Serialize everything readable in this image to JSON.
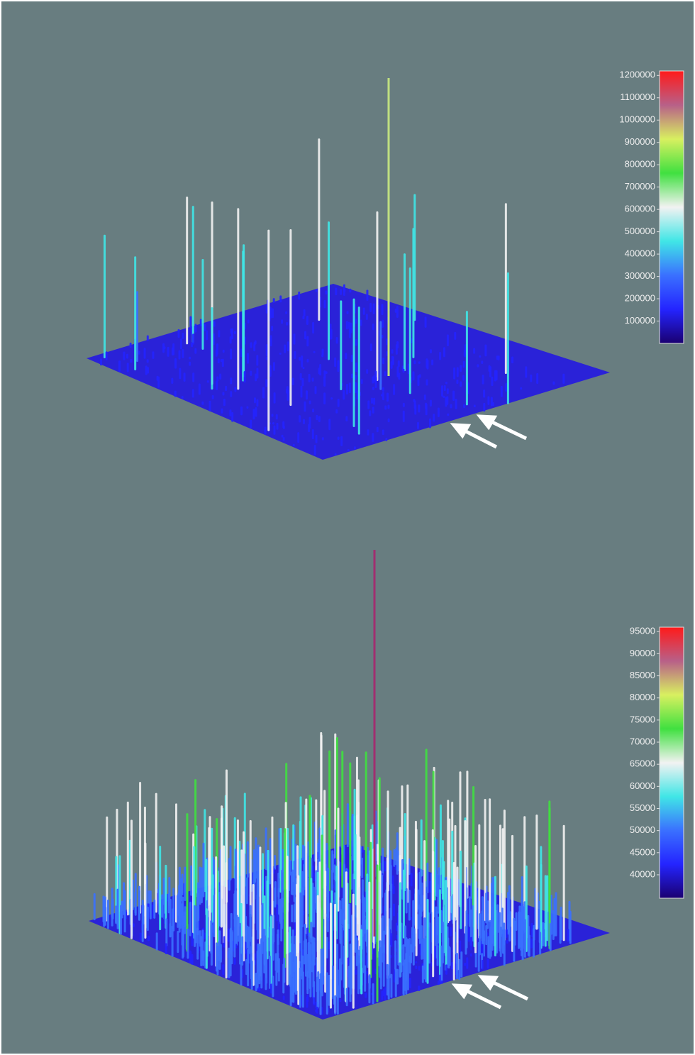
{
  "chart_data": [
    {
      "type": "surface3d",
      "colorbar": {
        "lim": [
          0,
          1220000
        ],
        "ticks": [
          100000,
          200000,
          300000,
          400000,
          500000,
          600000,
          700000,
          800000,
          900000,
          1000000,
          1100000,
          1200000
        ],
        "colors": [
          "#1a0070",
          "#2424ff",
          "#3a70ff",
          "#40e6e6",
          "#f2f2f2",
          "#40e040",
          "#d8f060",
          "#b86088",
          "#ff1a1a"
        ]
      }
    },
    {
      "type": "surface3d",
      "colorbar": {
        "lim": [
          34700,
          96000
        ],
        "ticks": [
          40000,
          45000,
          50000,
          55000,
          60000,
          65000,
          70000,
          75000,
          80000,
          85000,
          90000,
          95000
        ],
        "colors": [
          "#1a0070",
          "#2424ff",
          "#3a70ff",
          "#40e6e6",
          "#f2f2f2",
          "#40e040",
          "#d8f060",
          "#b86088",
          "#ff1a1a"
        ]
      }
    }
  ]
}
